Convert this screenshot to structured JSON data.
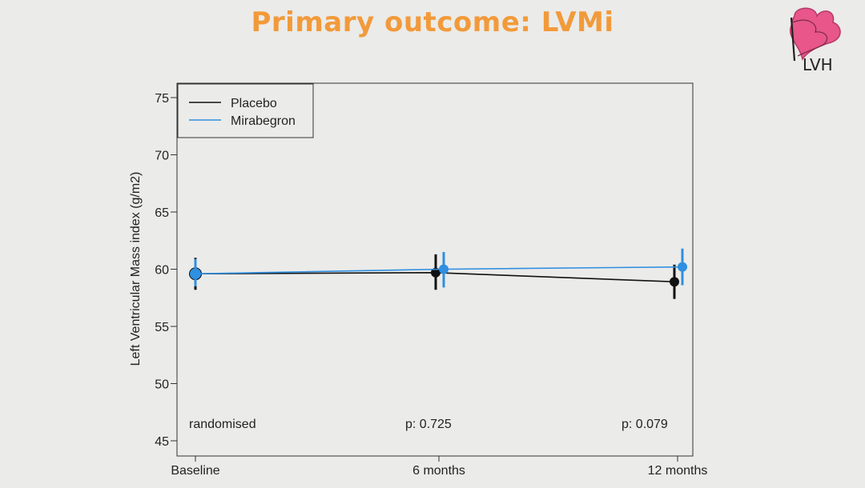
{
  "slide": {
    "title": "Primary outcome: LVMi"
  },
  "logo": {
    "text": "LVH",
    "icon": "heart-b-logo"
  },
  "colors": {
    "title": "#f29a3a",
    "placebo": "#111111",
    "mirabegron": "#2f8fe0",
    "background": "#ebebe9"
  },
  "chart_data": {
    "type": "line",
    "title": "",
    "xlabel": "",
    "ylabel": "Left Ventricular Mass index (g/m2)",
    "categories": [
      "Baseline",
      "6 months",
      "12 months"
    ],
    "ylim": [
      45,
      75
    ],
    "yticks": [
      45,
      50,
      55,
      60,
      65,
      70,
      75
    ],
    "grid": false,
    "legend": "top-left",
    "series": [
      {
        "name": "Placebo",
        "color": "#111111",
        "values": [
          59.6,
          59.7,
          58.9
        ],
        "lower": [
          58.2,
          58.2,
          57.4
        ],
        "upper": [
          61.0,
          61.3,
          60.4
        ]
      },
      {
        "name": "Mirabegron",
        "color": "#2f8fe0",
        "values": [
          59.6,
          60.0,
          60.2
        ],
        "lower": [
          58.5,
          58.4,
          58.6
        ],
        "upper": [
          60.9,
          61.5,
          61.8
        ]
      }
    ],
    "annotations": [
      "randomised",
      "p:  0.725",
      "p:  0.079"
    ]
  }
}
